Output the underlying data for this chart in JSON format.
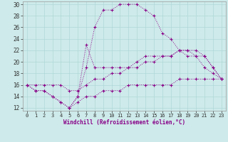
{
  "xlabel": "Windchill (Refroidissement éolien,°C)",
  "background_color": "#ceeaea",
  "line_color": "#880088",
  "xlim": [
    -0.5,
    23.5
  ],
  "ylim": [
    11.5,
    30.5
  ],
  "xticks": [
    0,
    1,
    2,
    3,
    4,
    5,
    6,
    7,
    8,
    9,
    10,
    11,
    12,
    13,
    14,
    15,
    16,
    17,
    18,
    19,
    20,
    21,
    22,
    23
  ],
  "yticks": [
    12,
    14,
    16,
    18,
    20,
    22,
    24,
    26,
    28,
    30
  ],
  "curves": [
    {
      "x": [
        0,
        1,
        2,
        3,
        4,
        5,
        6,
        7,
        8,
        9,
        10,
        11,
        12,
        13,
        14,
        15,
        16,
        17,
        18,
        19,
        20,
        21,
        22,
        23
      ],
      "y": [
        16,
        15,
        15,
        14,
        13,
        12,
        14,
        19,
        26,
        29,
        29,
        30,
        30,
        30,
        29,
        28,
        25,
        24,
        22,
        21,
        21,
        19,
        18,
        17
      ]
    },
    {
      "x": [
        5,
        6,
        7,
        8,
        9,
        10,
        11,
        12,
        13,
        14,
        15,
        16,
        17,
        18,
        19,
        20,
        21,
        22,
        23
      ],
      "y": [
        12,
        14,
        23,
        19,
        19,
        19,
        19,
        19,
        20,
        21,
        21,
        21,
        21,
        22,
        22,
        21,
        21,
        19,
        17
      ]
    },
    {
      "x": [
        0,
        1,
        2,
        3,
        4,
        5,
        6,
        7,
        8,
        9,
        10,
        11,
        12,
        13,
        14,
        15,
        16,
        17,
        18,
        19,
        20,
        21,
        22,
        23
      ],
      "y": [
        16,
        16,
        16,
        16,
        16,
        15,
        15,
        16,
        17,
        17,
        18,
        18,
        19,
        19,
        20,
        20,
        21,
        21,
        22,
        22,
        22,
        21,
        19,
        17
      ]
    },
    {
      "x": [
        0,
        1,
        2,
        3,
        4,
        5,
        6,
        7,
        8,
        9,
        10,
        11,
        12,
        13,
        14,
        15,
        16,
        17,
        18,
        19,
        20,
        21,
        22,
        23
      ],
      "y": [
        16,
        15,
        15,
        14,
        13,
        12,
        13,
        14,
        14,
        15,
        15,
        15,
        16,
        16,
        16,
        16,
        16,
        16,
        17,
        17,
        17,
        17,
        17,
        17
      ]
    }
  ]
}
